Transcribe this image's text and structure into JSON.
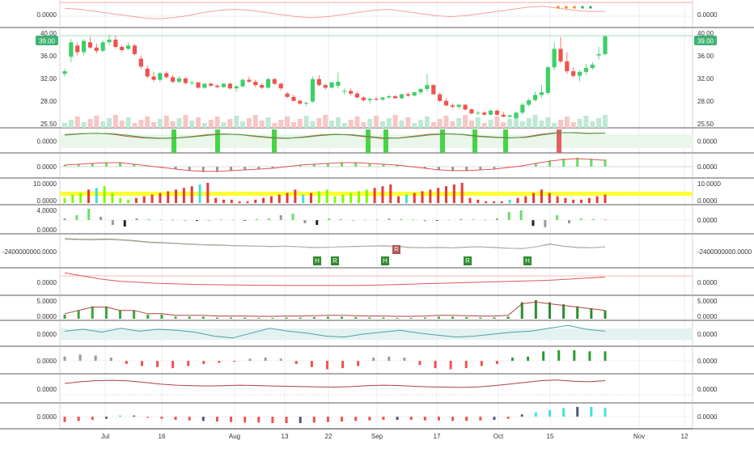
{
  "colors": {
    "up": "#26a69a",
    "up_bright": "#3ccf6a",
    "down": "#ef5350",
    "price_tag": "#3cb371",
    "grid": "#e9edf2",
    "separator": "#222222",
    "axis_text": "#333333",
    "yellow_band": "#ffff33",
    "cyan": "#40e0e0",
    "dark_green": "#2e8b2e",
    "olive_line": "#8a8a6a",
    "teal_band": "#e3f2f1"
  },
  "x_axis": {
    "labels": [
      "Jul",
      "16",
      "Aug",
      "13",
      "22",
      "Sep",
      "17",
      "Oct",
      "15",
      "Nov",
      "12"
    ]
  },
  "price_tag_left": "39.00",
  "price_tag_right": "39.00",
  "chart_data": [
    {
      "type": "line",
      "pane": "indicator-top",
      "y_labels_left": [
        "0.0000"
      ],
      "y_labels_right": [
        "0.0000"
      ],
      "series": [
        {
          "values": [
            0.6,
            0.5,
            0.3,
            0.1,
            -0.1,
            -0.3,
            -0.4,
            -0.3,
            -0.1,
            0.2,
            0.4,
            0.5,
            0.4,
            0.2,
            0.0,
            -0.2,
            -0.3,
            -0.2,
            0.0,
            0.2,
            0.4,
            0.5,
            0.3,
            0.1,
            -0.1,
            -0.2,
            -0.1,
            0.1,
            0.3,
            0.5,
            0.7,
            0.8,
            0.6,
            0.4,
            0.3,
            0.3
          ]
        }
      ]
    },
    {
      "type": "candlestick",
      "pane": "price",
      "y_labels_left": [
        "40.00",
        "36.00",
        "32.00",
        "28.00",
        "25.50"
      ],
      "y_labels_right": [
        "40.00",
        "36.00",
        "32.00",
        "28.00",
        "25.50"
      ],
      "ylim": [
        25,
        40
      ],
      "ohlc": [
        [
          33.2,
          34.0,
          32.8,
          33.6
        ],
        [
          35.8,
          38.5,
          35.0,
          38.0
        ],
        [
          37.5,
          38.0,
          36.0,
          36.5
        ],
        [
          36.5,
          38.5,
          36.0,
          38.2
        ],
        [
          38.0,
          38.8,
          37.0,
          37.2
        ],
        [
          37.2,
          37.8,
          36.3,
          36.7
        ],
        [
          36.7,
          38.3,
          36.5,
          38.0
        ],
        [
          38.0,
          39.2,
          37.5,
          38.4
        ],
        [
          38.4,
          39.0,
          37.0,
          37.3
        ],
        [
          37.3,
          37.6,
          36.5,
          36.8
        ],
        [
          37.0,
          38.0,
          36.8,
          37.5
        ],
        [
          37.5,
          37.8,
          36.0,
          36.2
        ],
        [
          35.5,
          36.0,
          34.0,
          34.3
        ],
        [
          34.0,
          34.5,
          32.5,
          32.8
        ],
        [
          32.8,
          33.5,
          32.0,
          32.3
        ],
        [
          32.3,
          33.5,
          32.0,
          33.3
        ],
        [
          33.3,
          33.6,
          32.5,
          32.7
        ],
        [
          32.7,
          33.0,
          31.8,
          32.0
        ],
        [
          32.0,
          32.8,
          31.8,
          32.5
        ],
        [
          32.5,
          32.8,
          31.6,
          31.8
        ],
        [
          31.8,
          32.2,
          31.5,
          31.9
        ],
        [
          31.9,
          32.0,
          30.9,
          31.1
        ],
        [
          31.1,
          31.8,
          30.9,
          31.7
        ],
        [
          31.7,
          31.9,
          31.2,
          31.4
        ],
        [
          31.4,
          31.6,
          31.0,
          31.2
        ],
        [
          31.2,
          31.8,
          31.1,
          31.7
        ],
        [
          31.7,
          31.9,
          30.8,
          31.0
        ],
        [
          31.0,
          31.5,
          30.5,
          31.3
        ],
        [
          31.3,
          32.5,
          31.1,
          32.3
        ],
        [
          32.3,
          32.8,
          31.8,
          32.0
        ],
        [
          32.0,
          32.3,
          31.2,
          31.5
        ],
        [
          31.5,
          31.8,
          30.9,
          31.1
        ],
        [
          31.1,
          32.6,
          31.0,
          32.4
        ],
        [
          32.4,
          32.6,
          31.5,
          31.7
        ],
        [
          31.7,
          31.9,
          30.7,
          31.0
        ],
        [
          30.2,
          30.5,
          29.5,
          29.7
        ],
        [
          29.7,
          30.0,
          29.0,
          29.1
        ],
        [
          29.1,
          29.3,
          28.5,
          28.7
        ],
        [
          28.7,
          29.0,
          28.3,
          28.8
        ],
        [
          29.0,
          32.8,
          28.8,
          32.4
        ],
        [
          32.4,
          33.0,
          31.3,
          31.5
        ],
        [
          31.5,
          31.7,
          30.8,
          31.1
        ],
        [
          31.1,
          32.0,
          31.0,
          31.9
        ],
        [
          31.4,
          33.4,
          31.0,
          32.0
        ],
        [
          30.5,
          31.0,
          30.0,
          30.6
        ],
        [
          30.6,
          31.0,
          29.9,
          30.2
        ],
        [
          30.2,
          30.5,
          29.5,
          29.6
        ],
        [
          29.6,
          29.8,
          29.0,
          29.2
        ],
        [
          29.2,
          29.6,
          28.7,
          29.4
        ],
        [
          29.4,
          29.7,
          29.1,
          29.3
        ],
        [
          29.3,
          29.7,
          29.0,
          29.6
        ],
        [
          29.6,
          30.0,
          29.4,
          29.8
        ],
        [
          29.8,
          30.0,
          29.4,
          29.5
        ],
        [
          29.5,
          30.2,
          29.3,
          30.1
        ],
        [
          30.1,
          30.4,
          29.7,
          29.9
        ],
        [
          29.9,
          30.5,
          29.8,
          30.4
        ],
        [
          30.4,
          31.1,
          30.0,
          30.9
        ],
        [
          30.9,
          33.2,
          30.5,
          31.5
        ],
        [
          31.5,
          31.6,
          30.0,
          30.1
        ],
        [
          30.1,
          30.3,
          28.9,
          29.1
        ],
        [
          29.1,
          29.5,
          28.3,
          28.4
        ],
        [
          28.4,
          28.7,
          28.0,
          28.2
        ],
        [
          28.2,
          28.6,
          27.8,
          28.5
        ],
        [
          28.5,
          28.6,
          27.6,
          27.8
        ],
        [
          27.8,
          28.0,
          27.0,
          27.2
        ],
        [
          27.2,
          27.6,
          26.9,
          27.3
        ],
        [
          27.3,
          27.5,
          26.8,
          27.0
        ],
        [
          27.0,
          27.8,
          26.9,
          27.6
        ],
        [
          27.6,
          27.8,
          26.8,
          27.0
        ],
        [
          27.0,
          27.4,
          26.6,
          26.7
        ],
        [
          26.7,
          27.0,
          26.4,
          26.9
        ],
        [
          26.5,
          27.5,
          26.3,
          27.3
        ],
        [
          27.3,
          28.8,
          27.0,
          28.5
        ],
        [
          28.5,
          29.5,
          28.2,
          29.2
        ],
        [
          29.2,
          30.5,
          29.0,
          30.0
        ],
        [
          30.0,
          31.5,
          29.6,
          30.4
        ],
        [
          30.3,
          34.4,
          30.0,
          34.2
        ],
        [
          34.2,
          38.0,
          33.8,
          37.0
        ],
        [
          37.0,
          38.8,
          34.8,
          35.1
        ],
        [
          35.1,
          36.5,
          33.2,
          33.6
        ],
        [
          33.6,
          34.2,
          32.6,
          32.9
        ],
        [
          32.9,
          33.8,
          32.0,
          33.5
        ],
        [
          33.5,
          34.7,
          33.0,
          34.1
        ],
        [
          34.1,
          35.0,
          33.8,
          34.6
        ],
        [
          36.0,
          37.3,
          35.4,
          36.2
        ],
        [
          36.2,
          39.1,
          36.0,
          38.9
        ]
      ]
    },
    {
      "type": "line",
      "pane": "stochastic",
      "y_labels_left": [
        "0.0000"
      ],
      "y_labels_right": [
        "0.0000"
      ],
      "series": [
        {
          "values": [
            0.7,
            0.82,
            0.85,
            0.75,
            0.5,
            0.35,
            0.3,
            0.35,
            0.5,
            0.7,
            0.78,
            0.7,
            0.5,
            0.35,
            0.3,
            0.45,
            0.65,
            0.75,
            0.65,
            0.45,
            0.3,
            0.35,
            0.55,
            0.75,
            0.8,
            0.7,
            0.5,
            0.4,
            0.35,
            0.45,
            0.75,
            0.92,
            0.9,
            0.82,
            0.88
          ]
        },
        {
          "values": [
            0.65,
            0.78,
            0.84,
            0.8,
            0.62,
            0.42,
            0.33,
            0.33,
            0.45,
            0.63,
            0.75,
            0.72,
            0.56,
            0.4,
            0.32,
            0.4,
            0.58,
            0.72,
            0.7,
            0.52,
            0.36,
            0.33,
            0.48,
            0.68,
            0.78,
            0.74,
            0.56,
            0.44,
            0.37,
            0.4,
            0.66,
            0.88,
            0.92,
            0.85,
            0.86
          ]
        }
      ]
    },
    {
      "type": "bar",
      "pane": "oscillator-a",
      "y_labels_left": [
        "0.0000"
      ],
      "y_labels_right": [
        "0.0000"
      ],
      "values": [
        0.2,
        0.3,
        0.4,
        0.5,
        0.5,
        0.3,
        0.1,
        -0.1,
        -0.3,
        -0.5,
        -0.6,
        -0.6,
        -0.5,
        -0.4,
        -0.3,
        -0.2,
        0.0,
        0.2,
        0.3,
        0.4,
        0.5,
        0.5,
        0.4,
        0.3,
        0.2,
        0.0,
        -0.2,
        -0.4,
        -0.5,
        -0.5,
        -0.4,
        -0.3,
        -0.1,
        0.1,
        0.4,
        0.7,
        0.9,
        1.0,
        0.9,
        0.8
      ]
    },
    {
      "type": "bar",
      "pane": "volume-oscillator",
      "y_labels_left": [
        "10.0000",
        "0.0000"
      ],
      "y_labels_right": [
        "10.0000",
        "0.0000"
      ],
      "values": [
        3,
        5,
        6,
        8,
        9,
        10,
        6,
        3,
        2,
        3,
        4,
        5,
        6,
        7,
        8,
        9,
        10,
        11,
        12,
        3,
        2,
        2,
        1,
        1,
        2,
        3,
        4,
        5,
        6,
        8,
        5,
        6,
        7,
        8,
        4,
        5,
        6,
        7,
        8,
        9,
        10,
        11,
        4,
        5,
        6,
        7,
        8,
        9,
        10,
        11,
        12,
        3,
        2,
        1,
        1,
        1,
        2,
        3,
        4,
        6,
        8,
        6,
        4,
        3,
        2,
        2,
        3,
        4,
        5
      ]
    },
    {
      "type": "bar",
      "pane": "momentum",
      "y_labels_left": [
        "4.0000",
        "0.0000"
      ],
      "y_labels_right": [
        "0.0000"
      ],
      "values": [
        0.5,
        1.5,
        3.5,
        1.0,
        -1.5,
        -2.0,
        0.5,
        0.3,
        0.2,
        0.1,
        -0.2,
        -0.3,
        -0.1,
        0.2,
        0.1,
        -0.2,
        0.3,
        0.5,
        1.5,
        2.0,
        -1.0,
        -1.5,
        0.5,
        0.3,
        -0.2,
        0.1,
        0.2,
        0.4,
        0.3,
        0.2,
        -0.3,
        -0.2,
        0.1,
        0.3,
        0.2,
        0.1,
        0.5,
        2.5,
        3.0,
        -1.8,
        -2.2,
        1.5,
        -1.0,
        0.5,
        0.3,
        0.2
      ]
    },
    {
      "type": "line",
      "pane": "obv",
      "y_labels_left": [
        "-2400000000.0000"
      ],
      "y_labels_right": [
        "-2400000000.0000"
      ],
      "series": [
        {
          "values": [
            0.95,
            0.9,
            0.88,
            0.92,
            0.87,
            0.8,
            0.7,
            0.65,
            0.6,
            0.55,
            0.5,
            0.48,
            0.45,
            0.42,
            0.4,
            0.38,
            0.4,
            0.35,
            0.3,
            0.32,
            0.35,
            0.38,
            0.4,
            0.42,
            0.38,
            0.3,
            0.28,
            0.3,
            0.27,
            0.33,
            0.35,
            0.3,
            0.25,
            0.22,
            0.35,
            0.55,
            0.4,
            0.3,
            0.28,
            0.35
          ]
        }
      ],
      "markers": [
        "H",
        "R",
        "H",
        "R",
        "R",
        "H"
      ]
    },
    {
      "type": "line",
      "pane": "indicator-b",
      "y_labels_left": [
        "0.0000"
      ],
      "y_labels_right": [
        "0.0000"
      ],
      "series": [
        {
          "values": [
            0.9,
            0.6,
            0.3,
            0.1,
            0.0,
            -0.1,
            -0.15,
            -0.2,
            -0.22,
            -0.25,
            -0.27,
            -0.28,
            -0.3,
            -0.3,
            -0.3,
            -0.3,
            -0.29,
            -0.25,
            -0.2,
            -0.15,
            -0.1,
            -0.05,
            0.0,
            0.05,
            0.1,
            0.15,
            0.2,
            0.3,
            0.4,
            0.5
          ]
        }
      ]
    },
    {
      "type": "bar",
      "pane": "indicator-c",
      "y_labels_left": [
        "5.0000",
        "0.0000"
      ],
      "y_labels_right": [
        "5.0000",
        "0.0000"
      ],
      "values": [
        1,
        2,
        3,
        3,
        2,
        2,
        1,
        1,
        0.5,
        0.5,
        0.5,
        0.3,
        0.3,
        0.3,
        0.2,
        0.2,
        0.3,
        0.3,
        0.4,
        0.5,
        0.5,
        0.4,
        0.3,
        0.3,
        0.2,
        0.2,
        0.3,
        0.5,
        0.5,
        0.4,
        0.3,
        0.3,
        0.5,
        4,
        4.5,
        4,
        3.5,
        3,
        2.5,
        2
      ]
    },
    {
      "type": "line",
      "pane": "indicator-d",
      "y_labels_left": [
        "0.0000"
      ],
      "y_labels_right": [
        "0.0000"
      ],
      "series": [
        {
          "values": [
            0.3,
            0.5,
            0.2,
            0.6,
            0.3,
            0.5,
            0.4,
            0.2,
            -0.2,
            -0.4,
            0.1,
            0.6,
            0.3,
            0.1,
            -0.2,
            -0.3,
            0.0,
            0.2,
            0.4,
            0.1,
            -0.1,
            -0.3,
            -0.2,
            0.0,
            0.2,
            0.3,
            0.6,
            0.9,
            0.5,
            0.3
          ]
        }
      ]
    },
    {
      "type": "bar",
      "pane": "indicator-e",
      "y_labels_left": [
        "0.0000"
      ],
      "y_labels_right": [
        "0.0000"
      ],
      "values": [
        0.4,
        0.6,
        0.5,
        0.3,
        -0.3,
        -0.5,
        -0.6,
        -0.7,
        -0.5,
        -0.3,
        -0.2,
        -0.1,
        0.2,
        0.3,
        0.2,
        -0.3,
        -0.6,
        -0.8,
        -0.7,
        -0.5,
        0.3,
        0.4,
        0.3,
        -0.4,
        -0.7,
        -0.8,
        -0.7,
        -0.5,
        -0.3,
        0.3,
        0.4,
        0.9,
        1.0,
        1.0,
        0.9,
        0.9
      ]
    },
    {
      "type": "line",
      "pane": "indicator-f",
      "y_labels_left": [
        "0.0000"
      ],
      "y_labels_right": [
        "0.0000"
      ],
      "series": [
        {
          "values": [
            0.5,
            0.65,
            0.75,
            0.78,
            0.72,
            0.6,
            0.45,
            0.35,
            0.3,
            0.28,
            0.3,
            0.35,
            0.32,
            0.28,
            0.25,
            0.22,
            0.2,
            0.18,
            0.22,
            0.3,
            0.35,
            0.32,
            0.25,
            0.2,
            0.18,
            0.15,
            0.2,
            0.3,
            0.45,
            0.6,
            0.75,
            0.8,
            0.7,
            0.65,
            0.75
          ]
        }
      ]
    },
    {
      "type": "bar",
      "pane": "indicator-g",
      "y_labels_left": [
        "0.0000"
      ],
      "y_labels_right": [
        "0.0000"
      ],
      "values": [
        -0.5,
        -0.4,
        -0.3,
        -0.2,
        0.1,
        0.1,
        -0.1,
        -0.2,
        -0.3,
        -0.35,
        -0.4,
        -0.45,
        -0.5,
        -0.55,
        -0.55,
        -0.6,
        -0.6,
        -0.6,
        -0.55,
        -0.5,
        -0.45,
        -0.4,
        -0.35,
        -0.3,
        -0.3,
        -0.3,
        -0.35,
        -0.35,
        -0.4,
        -0.4,
        -0.35,
        -0.3,
        -0.2,
        0.2,
        0.4,
        0.6,
        0.8,
        0.9,
        0.9,
        0.8
      ]
    }
  ]
}
